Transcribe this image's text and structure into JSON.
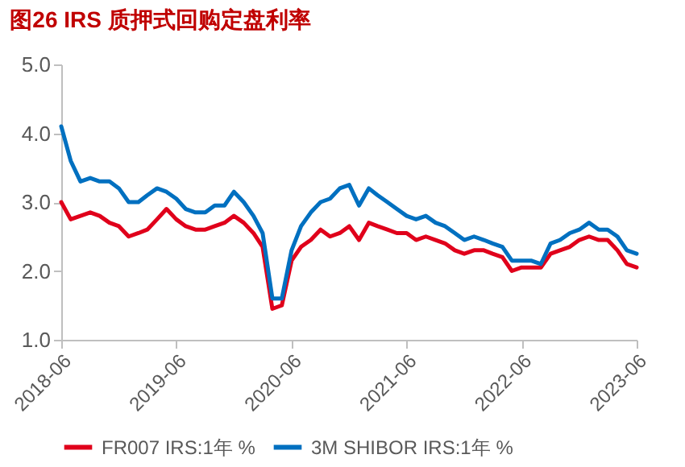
{
  "chart_data": {
    "type": "line",
    "title": "图26  IRS 质押式回购定盘利率",
    "x": [
      "2018-06",
      "2018-07",
      "2018-08",
      "2018-09",
      "2018-10",
      "2018-11",
      "2018-12",
      "2019-01",
      "2019-02",
      "2019-03",
      "2019-04",
      "2019-05",
      "2019-06",
      "2019-07",
      "2019-08",
      "2019-09",
      "2019-10",
      "2019-11",
      "2019-12",
      "2020-01",
      "2020-02",
      "2020-03",
      "2020-04",
      "2020-05",
      "2020-06",
      "2020-07",
      "2020-08",
      "2020-09",
      "2020-10",
      "2020-11",
      "2020-12",
      "2021-01",
      "2021-02",
      "2021-03",
      "2021-04",
      "2021-05",
      "2021-06",
      "2021-07",
      "2021-08",
      "2021-09",
      "2021-10",
      "2021-11",
      "2021-12",
      "2022-01",
      "2022-02",
      "2022-03",
      "2022-04",
      "2022-05",
      "2022-06",
      "2022-07",
      "2022-08",
      "2022-09",
      "2022-10",
      "2022-11",
      "2022-12",
      "2023-01",
      "2023-02",
      "2023-03",
      "2023-04",
      "2023-05",
      "2023-06"
    ],
    "series": [
      {
        "name": "FR007 IRS:1年 %",
        "color": "#e0001b",
        "values": [
          3.0,
          2.75,
          2.8,
          2.85,
          2.8,
          2.7,
          2.65,
          2.5,
          2.55,
          2.6,
          2.75,
          2.9,
          2.75,
          2.65,
          2.6,
          2.6,
          2.65,
          2.7,
          2.8,
          2.7,
          2.55,
          2.35,
          1.45,
          1.5,
          2.15,
          2.35,
          2.45,
          2.6,
          2.5,
          2.55,
          2.65,
          2.45,
          2.7,
          2.65,
          2.6,
          2.55,
          2.55,
          2.45,
          2.5,
          2.45,
          2.4,
          2.3,
          2.25,
          2.3,
          2.3,
          2.25,
          2.2,
          2.0,
          2.05,
          2.05,
          2.05,
          2.25,
          2.3,
          2.35,
          2.45,
          2.5,
          2.45,
          2.45,
          2.3,
          2.1,
          2.05
        ]
      },
      {
        "name": "3M SHIBOR IRS:1年 %",
        "color": "#0070c0",
        "values": [
          4.1,
          3.6,
          3.3,
          3.35,
          3.3,
          3.3,
          3.2,
          3.0,
          3.0,
          3.1,
          3.2,
          3.15,
          3.05,
          2.9,
          2.85,
          2.85,
          2.95,
          2.95,
          3.15,
          3.0,
          2.8,
          2.55,
          1.6,
          1.6,
          2.3,
          2.65,
          2.85,
          3.0,
          3.05,
          3.2,
          3.25,
          2.95,
          3.2,
          3.1,
          3.0,
          2.9,
          2.8,
          2.75,
          2.8,
          2.7,
          2.65,
          2.55,
          2.45,
          2.5,
          2.45,
          2.4,
          2.35,
          2.15,
          2.15,
          2.15,
          2.1,
          2.4,
          2.45,
          2.55,
          2.6,
          2.7,
          2.6,
          2.6,
          2.5,
          2.3,
          2.25
        ]
      }
    ],
    "xlim": [
      "2018-06",
      "2023-06"
    ],
    "xticks": [
      "2018-06",
      "2019-06",
      "2020-06",
      "2021-06",
      "2022-06",
      "2023-06"
    ],
    "ylim": [
      1.0,
      5.0
    ],
    "yticks": [
      {
        "value": 1,
        "label": "1.0"
      },
      {
        "value": 2,
        "label": "2.0"
      },
      {
        "value": 3,
        "label": "3.0"
      },
      {
        "value": 4,
        "label": "4.0"
      },
      {
        "value": 5,
        "label": "5.0"
      }
    ],
    "grid": false,
    "legend": "bottom",
    "line_style": "solid",
    "marker": "none"
  }
}
